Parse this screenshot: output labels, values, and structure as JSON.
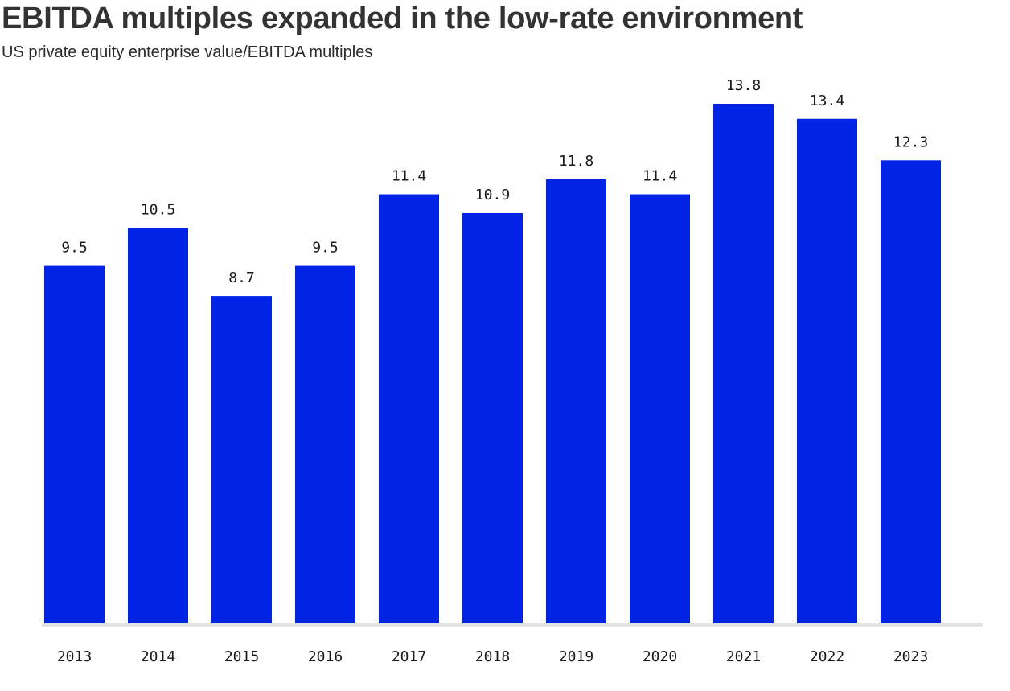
{
  "chart_data": {
    "type": "bar",
    "title": "EBITDA multiples expanded in the low-rate environment",
    "subtitle": "US private equity enterprise value/EBITDA multiples",
    "categories": [
      "2013",
      "2014",
      "2015",
      "2016",
      "2017",
      "2018",
      "2019",
      "2020",
      "2021",
      "2022",
      "2023"
    ],
    "values": [
      9.5,
      10.5,
      8.7,
      9.5,
      11.4,
      10.9,
      11.8,
      11.4,
      13.8,
      13.4,
      12.3
    ],
    "value_labels": [
      "9.5",
      "10.5",
      "8.7",
      "9.5",
      "11.4",
      "10.9",
      "11.8",
      "11.4",
      "13.8",
      "13.4",
      "12.3"
    ],
    "xlabel": "",
    "ylabel": "",
    "ylim": [
      0,
      13.8
    ],
    "grid": false,
    "bar_color": "#0023E6",
    "baseline_color": "#E3E3E3"
  }
}
